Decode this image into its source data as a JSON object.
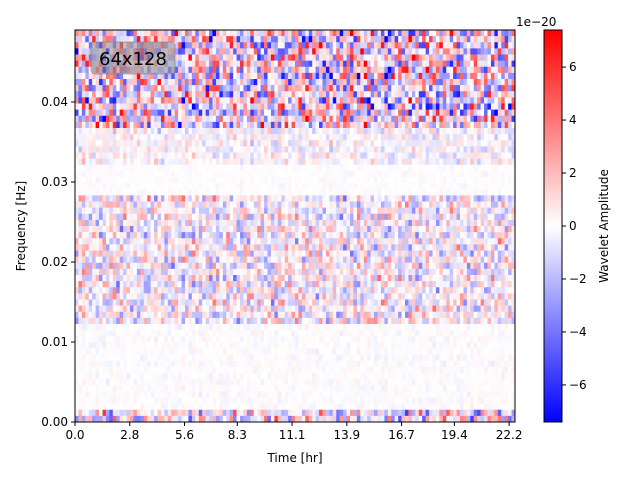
{
  "chart_data": {
    "type": "heatmap",
    "title": "",
    "annotation": "64x128",
    "xlabel": "Time [hr]",
    "ylabel": "Frequency [Hz]",
    "xlim": [
      0,
      22.5
    ],
    "ylim": [
      0,
      0.049
    ],
    "xticks": [
      "0.0",
      "2.8",
      "5.6",
      "8.3",
      "11.1",
      "13.9",
      "16.7",
      "19.4",
      "22.2"
    ],
    "xtick_values": [
      0.0,
      2.8,
      5.6,
      8.3,
      11.1,
      13.9,
      16.7,
      19.4,
      22.2
    ],
    "yticks": [
      "0.00",
      "0.01",
      "0.02",
      "0.03",
      "0.04"
    ],
    "ytick_values": [
      0.0,
      0.01,
      0.02,
      0.03,
      0.04
    ],
    "grid": {
      "rows": 64,
      "cols": 128
    },
    "colorbar": {
      "label": "Wavelet Amplitude",
      "offset_text": "1e−20",
      "ticks": [
        "−6",
        "−4",
        "−2",
        "0",
        "2",
        "4",
        "6"
      ],
      "tick_values": [
        -6,
        -4,
        -2,
        0,
        2,
        4,
        6
      ],
      "range": [
        -7.4,
        7.4
      ],
      "colormap": "bwr",
      "colors": {
        "low": "#0000ff",
        "mid": "#ffffff",
        "high": "#ff0000"
      }
    },
    "amplitude_profile_by_frequency": [
      {
        "band": [
          0.0,
          0.0015
        ],
        "relative_amplitude": 0.35
      },
      {
        "band": [
          0.0015,
          0.012
        ],
        "relative_amplitude": 0.03
      },
      {
        "band": [
          0.012,
          0.0285
        ],
        "relative_amplitude": 0.22
      },
      {
        "band": [
          0.0285,
          0.0325
        ],
        "relative_amplitude": 0.02
      },
      {
        "band": [
          0.0325,
          0.037
        ],
        "relative_amplitude": 0.12
      },
      {
        "band": [
          0.037,
          0.049
        ],
        "relative_amplitude": 0.45
      }
    ]
  }
}
